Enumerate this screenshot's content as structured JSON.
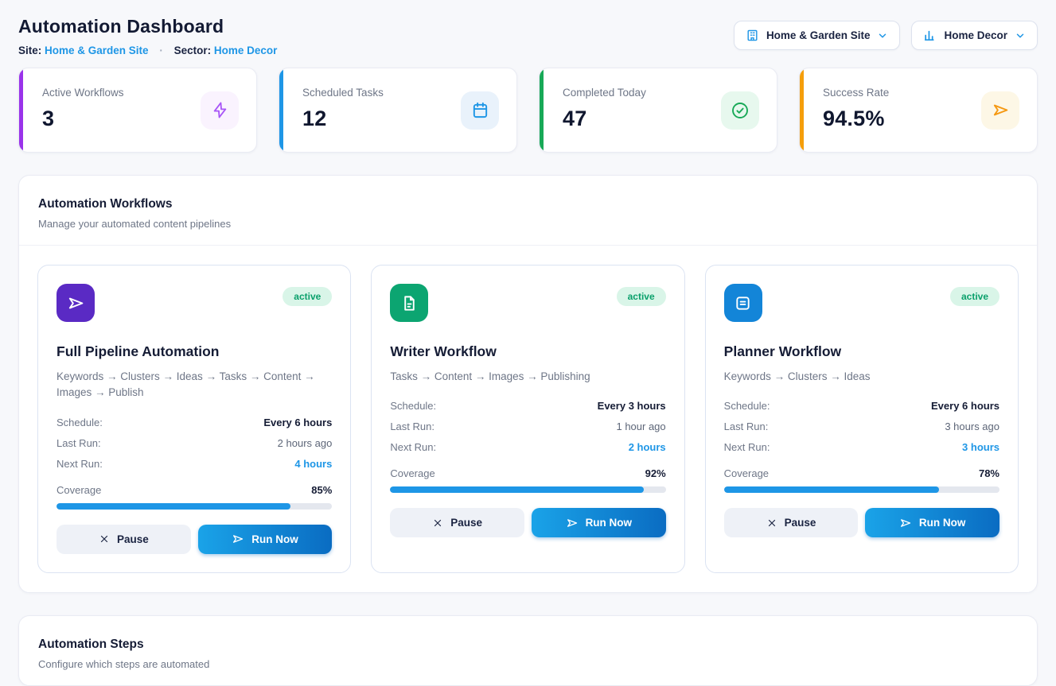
{
  "page": {
    "title": "Automation Dashboard",
    "site_label": "Site:",
    "site_value": "Home & Garden Site",
    "separator": "·",
    "sector_label": "Sector:",
    "sector_value": "Home Decor"
  },
  "selectors": {
    "site": {
      "label": "Home & Garden Site",
      "icon": "building-icon"
    },
    "sector": {
      "label": "Home Decor",
      "icon": "bar-chart-icon"
    }
  },
  "stats": [
    {
      "label": "Active Workflows",
      "value": "3",
      "accent": "#9a33ea",
      "icon": "lightning-icon",
      "icon_bg": "#faf3fe",
      "icon_color": "#a855f7"
    },
    {
      "label": "Scheduled Tasks",
      "value": "12",
      "accent": "#1e96e6",
      "icon": "calendar-icon",
      "icon_bg": "#e9f2fb",
      "icon_color": "#1e96e6"
    },
    {
      "label": "Completed Today",
      "value": "47",
      "accent": "#18a957",
      "icon": "check-circle-icon",
      "icon_bg": "#e7f8ee",
      "icon_color": "#18a957"
    },
    {
      "label": "Success Rate",
      "value": "94.5%",
      "accent": "#f59e0b",
      "icon": "send-icon",
      "icon_bg": "#fdf7e6",
      "icon_color": "#f59913"
    }
  ],
  "workflows_section": {
    "title": "Automation Workflows",
    "subtitle": "Manage your automated content pipelines",
    "cards": [
      {
        "name": "Full Pipeline Automation",
        "status": "active",
        "pipeline": "Keywords → Clusters → Ideas → Tasks → Content → Images → Publish",
        "icon": "send-icon",
        "icon_bg": "#5a2ac4",
        "schedule_label": "Schedule:",
        "schedule_value": "Every 6 hours",
        "last_run_label": "Last Run:",
        "last_run_value": "2 hours ago",
        "next_run_label": "Next Run:",
        "next_run_value": "4 hours",
        "coverage_label": "Coverage",
        "coverage_value": "85%",
        "coverage_pct": 85,
        "pause_label": "Pause",
        "run_label": "Run Now"
      },
      {
        "name": "Writer Workflow",
        "status": "active",
        "pipeline": "Tasks → Content → Images → Publishing",
        "icon": "file-text-icon",
        "icon_bg": "#0ca571",
        "schedule_label": "Schedule:",
        "schedule_value": "Every 3 hours",
        "last_run_label": "Last Run:",
        "last_run_value": "1 hour ago",
        "next_run_label": "Next Run:",
        "next_run_value": "2 hours",
        "coverage_label": "Coverage",
        "coverage_value": "92%",
        "coverage_pct": 92,
        "pause_label": "Pause",
        "run_label": "Run Now"
      },
      {
        "name": "Planner Workflow",
        "status": "active",
        "pipeline": "Keywords → Clusters → Ideas",
        "icon": "document-lines-icon",
        "icon_bg": "#1385d8",
        "schedule_label": "Schedule:",
        "schedule_value": "Every 6 hours",
        "last_run_label": "Last Run:",
        "last_run_value": "3 hours ago",
        "next_run_label": "Next Run:",
        "next_run_value": "3 hours",
        "coverage_label": "Coverage",
        "coverage_value": "78%",
        "coverage_pct": 78,
        "pause_label": "Pause",
        "run_label": "Run Now"
      }
    ]
  },
  "steps_section": {
    "title": "Automation Steps",
    "subtitle": "Configure which steps are automated"
  },
  "colors": {
    "accent_blue": "#1e96e6",
    "run_gradient_start": "#1aa3e8",
    "run_gradient_end": "#0a6cc2",
    "badge_bg": "#d9f5e8",
    "badge_text": "#0aa06b",
    "page_bg": "#f7f8fb"
  }
}
